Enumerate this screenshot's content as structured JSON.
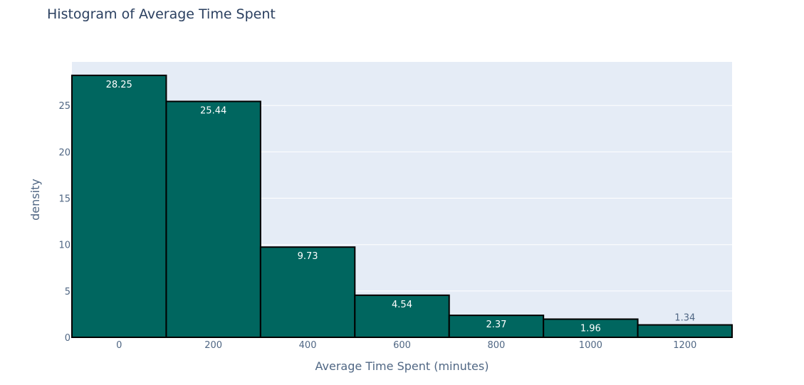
{
  "chart_data": {
    "type": "bar",
    "title": "Histogram of Average Time Spent",
    "xlabel": "Average Time Spent (minutes)",
    "ylabel": "density",
    "bin_edges": [
      -100,
      100,
      300,
      500,
      700,
      900,
      1100,
      1300
    ],
    "values": [
      28.25,
      25.44,
      9.73,
      4.54,
      2.37,
      1.96,
      1.34
    ],
    "value_labels": [
      "28.25",
      "25.44",
      "9.73",
      "4.54",
      "2.37",
      "1.96",
      "1.34"
    ],
    "xlim": [
      -100,
      1300
    ],
    "ylim": [
      0,
      29.7
    ],
    "x_ticks": [
      0,
      200,
      400,
      600,
      800,
      1000,
      1200
    ],
    "y_ticks": [
      0,
      5,
      10,
      15,
      20,
      25
    ],
    "grid": true,
    "bar_color": "#00665f",
    "bar_outline_color": "#000000",
    "plot_background": "#e5ecf6"
  }
}
